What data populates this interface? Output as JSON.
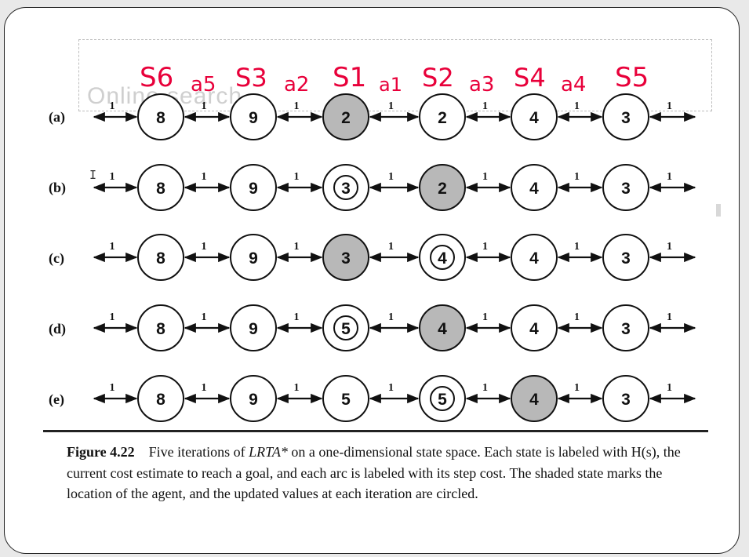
{
  "handwriting": [
    "S6",
    "a5",
    "S3",
    "a2",
    "S1",
    "a1",
    "S2",
    "a3",
    "S4",
    "a4",
    "S5"
  ],
  "ghost_title": "Online search...",
  "row_labels": [
    "(a)",
    "(b)",
    "(c)",
    "(d)",
    "(e)"
  ],
  "edge_cost": "1",
  "rows": [
    {
      "label": "(a)",
      "values": [
        "8",
        "9",
        "2",
        "2",
        "4",
        "3"
      ],
      "shaded": 2,
      "circled": []
    },
    {
      "label": "(b)",
      "values": [
        "8",
        "9",
        "3",
        "2",
        "4",
        "3"
      ],
      "shaded": 3,
      "circled": [
        2
      ]
    },
    {
      "label": "(c)",
      "values": [
        "8",
        "9",
        "3",
        "4",
        "4",
        "3"
      ],
      "shaded": 2,
      "circled": [
        3
      ]
    },
    {
      "label": "(d)",
      "values": [
        "8",
        "9",
        "5",
        "4",
        "4",
        "3"
      ],
      "shaded": 3,
      "circled": [
        2
      ]
    },
    {
      "label": "(e)",
      "values": [
        "8",
        "9",
        "5",
        "5",
        "4",
        "3"
      ],
      "shaded": 4,
      "circled": [
        3
      ]
    }
  ],
  "caption": {
    "figure_label": "Figure 4.22",
    "pre": "Five iterations of ",
    "algo": "LRTA*",
    "post": " on a one-dimensional state space. Each state is labeled with H(s), the current cost estimate to reach a goal, and each arc is labeled with its step cost. The shaded state marks the location of the agent, and the updated values at each iteration are circled."
  },
  "colors": {
    "ink": "#e8003a",
    "shade": "#b8b8b8",
    "line": "#111111"
  },
  "cursor_glyph": "I"
}
